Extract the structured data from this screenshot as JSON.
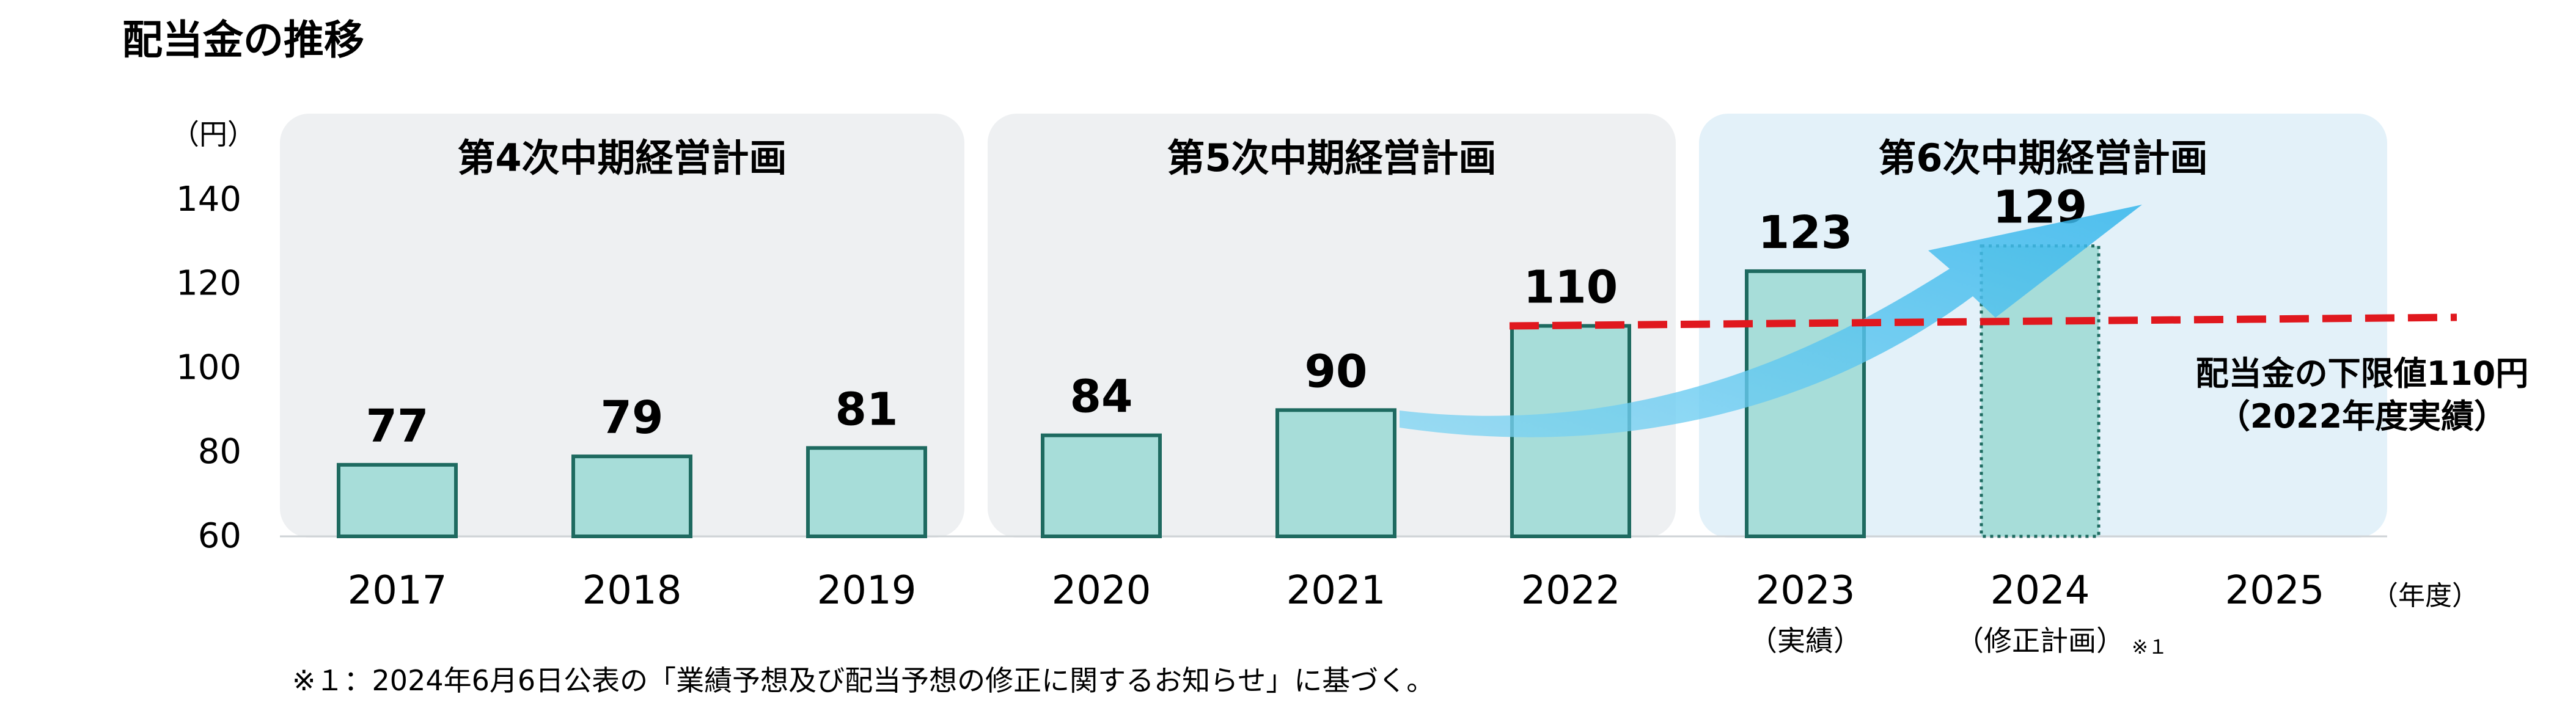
{
  "title": "配当金の推移",
  "unit_label": "（円）",
  "year_unit_label": "（年度）",
  "footnote": "※１：2024年6月6日公表の「業績予想及び配当予想の修正に関するお知らせ」に基づく。",
  "plan_panels": [
    {
      "label": "第4次中期経営計画",
      "color": "#eef0f2"
    },
    {
      "label": "第5次中期経営計画",
      "color": "#eef0f2"
    },
    {
      "label": "第6次中期経営計画",
      "color": "#e3f1f9"
    }
  ],
  "chart_data": {
    "type": "bar",
    "categories": [
      "2017",
      "2018",
      "2019",
      "2020",
      "2021",
      "2022",
      "2023",
      "2024",
      "2025"
    ],
    "category_sublabels": [
      "",
      "",
      "",
      "",
      "",
      "",
      "（実績）",
      "（修正計画）",
      ""
    ],
    "category_sublabel_note": [
      "",
      "",
      "",
      "",
      "",
      "",
      "",
      "※１",
      ""
    ],
    "values": [
      77,
      79,
      81,
      84,
      90,
      110,
      123,
      129,
      null
    ],
    "value_labels": [
      "77",
      "79",
      "81",
      "84",
      "90",
      "110",
      "123",
      "129",
      ""
    ],
    "bar_style": [
      "solid",
      "solid",
      "solid",
      "solid",
      "solid",
      "solid",
      "solid",
      "dotted",
      "none"
    ],
    "ylim": [
      60,
      140
    ],
    "yticks": [
      60,
      80,
      100,
      120,
      140
    ],
    "reference_line": {
      "value": 110,
      "label_line1": "配当金の下限値110円",
      "label_line2": "（2022年度実績）",
      "color": "#e0181e"
    },
    "bar_fill": "#a7ddd9",
    "bar_stroke": "#1e6a60",
    "arrow_color": "#4fc0ec"
  }
}
